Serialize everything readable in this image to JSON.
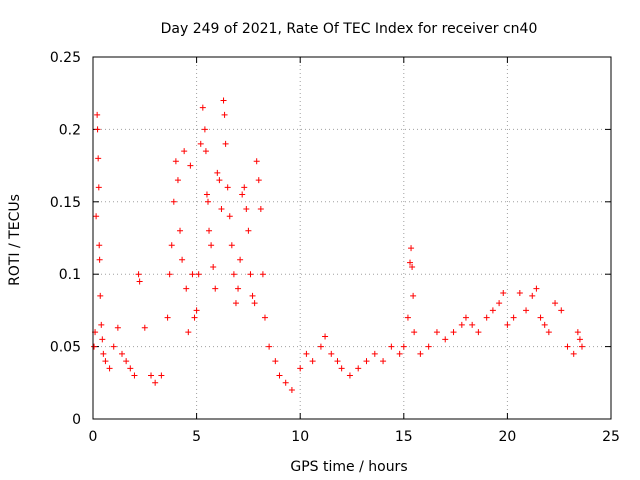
{
  "chart_data": {
    "type": "scatter",
    "title": "Day 249 of 2021, Rate Of TEC Index for receiver cn40",
    "xlabel": "GPS time / hours",
    "ylabel": "ROTI / TECUs",
    "xlim": [
      0,
      25
    ],
    "ylim": [
      0,
      0.25
    ],
    "xticks": [
      "0",
      "5",
      "10",
      "15",
      "20",
      "25"
    ],
    "yticks": [
      "0",
      "0.05",
      "0.1",
      "0.15",
      "0.2",
      "0.25"
    ],
    "xtick_values": [
      0,
      5,
      10,
      15,
      20,
      25
    ],
    "ytick_values": [
      0,
      0.05,
      0.1,
      0.15,
      0.2,
      0.25
    ],
    "grid": true,
    "legend": "none",
    "marker": "plus",
    "color": "#ff0000",
    "series": [
      {
        "points": [
          [
            0.05,
            0.05
          ],
          [
            0.1,
            0.06
          ],
          [
            0.15,
            0.14
          ],
          [
            0.2,
            0.21
          ],
          [
            0.22,
            0.2
          ],
          [
            0.25,
            0.18
          ],
          [
            0.28,
            0.16
          ],
          [
            0.3,
            0.12
          ],
          [
            0.32,
            0.11
          ],
          [
            0.35,
            0.085
          ],
          [
            0.4,
            0.065
          ],
          [
            0.45,
            0.055
          ],
          [
            0.5,
            0.045
          ],
          [
            0.6,
            0.04
          ],
          [
            0.8,
            0.035
          ],
          [
            1.0,
            0.05
          ],
          [
            1.2,
            0.063
          ],
          [
            1.4,
            0.045
          ],
          [
            1.6,
            0.04
          ],
          [
            1.8,
            0.035
          ],
          [
            2.0,
            0.03
          ],
          [
            2.2,
            0.1
          ],
          [
            2.25,
            0.095
          ],
          [
            2.5,
            0.063
          ],
          [
            2.8,
            0.03
          ],
          [
            3.0,
            0.025
          ],
          [
            3.3,
            0.03
          ],
          [
            3.6,
            0.07
          ],
          [
            3.7,
            0.1
          ],
          [
            3.8,
            0.12
          ],
          [
            3.9,
            0.15
          ],
          [
            4.0,
            0.178
          ],
          [
            4.1,
            0.165
          ],
          [
            4.2,
            0.13
          ],
          [
            4.3,
            0.11
          ],
          [
            4.4,
            0.185
          ],
          [
            4.5,
            0.09
          ],
          [
            4.6,
            0.06
          ],
          [
            4.7,
            0.175
          ],
          [
            4.8,
            0.1
          ],
          [
            4.9,
            0.07
          ],
          [
            5.0,
            0.075
          ],
          [
            5.1,
            0.1
          ],
          [
            5.2,
            0.19
          ],
          [
            5.3,
            0.215
          ],
          [
            5.4,
            0.2
          ],
          [
            5.45,
            0.185
          ],
          [
            5.5,
            0.155
          ],
          [
            5.55,
            0.15
          ],
          [
            5.6,
            0.13
          ],
          [
            5.7,
            0.12
          ],
          [
            5.8,
            0.105
          ],
          [
            5.9,
            0.09
          ],
          [
            6.0,
            0.17
          ],
          [
            6.1,
            0.165
          ],
          [
            6.2,
            0.145
          ],
          [
            6.3,
            0.22
          ],
          [
            6.35,
            0.21
          ],
          [
            6.4,
            0.19
          ],
          [
            6.5,
            0.16
          ],
          [
            6.6,
            0.14
          ],
          [
            6.7,
            0.12
          ],
          [
            6.8,
            0.1
          ],
          [
            6.9,
            0.08
          ],
          [
            7.0,
            0.09
          ],
          [
            7.1,
            0.11
          ],
          [
            7.2,
            0.155
          ],
          [
            7.3,
            0.16
          ],
          [
            7.4,
            0.145
          ],
          [
            7.5,
            0.13
          ],
          [
            7.6,
            0.1
          ],
          [
            7.7,
            0.085
          ],
          [
            7.8,
            0.08
          ],
          [
            7.9,
            0.178
          ],
          [
            8.0,
            0.165
          ],
          [
            8.1,
            0.145
          ],
          [
            8.2,
            0.1
          ],
          [
            8.3,
            0.07
          ],
          [
            8.5,
            0.05
          ],
          [
            8.8,
            0.04
          ],
          [
            9.0,
            0.03
          ],
          [
            9.3,
            0.025
          ],
          [
            9.6,
            0.02
          ],
          [
            10.0,
            0.035
          ],
          [
            10.3,
            0.045
          ],
          [
            10.6,
            0.04
          ],
          [
            11.0,
            0.05
          ],
          [
            11.2,
            0.057
          ],
          [
            11.5,
            0.045
          ],
          [
            11.8,
            0.04
          ],
          [
            12.0,
            0.035
          ],
          [
            12.4,
            0.03
          ],
          [
            12.8,
            0.035
          ],
          [
            13.2,
            0.04
          ],
          [
            13.6,
            0.045
          ],
          [
            14.0,
            0.04
          ],
          [
            14.4,
            0.05
          ],
          [
            14.8,
            0.045
          ],
          [
            15.0,
            0.05
          ],
          [
            15.2,
            0.07
          ],
          [
            15.3,
            0.108
          ],
          [
            15.35,
            0.118
          ],
          [
            15.4,
            0.105
          ],
          [
            15.45,
            0.085
          ],
          [
            15.5,
            0.06
          ],
          [
            15.8,
            0.045
          ],
          [
            16.2,
            0.05
          ],
          [
            16.6,
            0.06
          ],
          [
            17.0,
            0.055
          ],
          [
            17.4,
            0.06
          ],
          [
            17.8,
            0.065
          ],
          [
            18.0,
            0.07
          ],
          [
            18.3,
            0.065
          ],
          [
            18.6,
            0.06
          ],
          [
            19.0,
            0.07
          ],
          [
            19.3,
            0.075
          ],
          [
            19.6,
            0.08
          ],
          [
            19.8,
            0.087
          ],
          [
            20.0,
            0.065
          ],
          [
            20.3,
            0.07
          ],
          [
            20.6,
            0.087
          ],
          [
            20.9,
            0.075
          ],
          [
            21.2,
            0.085
          ],
          [
            21.4,
            0.09
          ],
          [
            21.6,
            0.07
          ],
          [
            21.8,
            0.065
          ],
          [
            22.0,
            0.06
          ],
          [
            22.3,
            0.08
          ],
          [
            22.6,
            0.075
          ],
          [
            22.9,
            0.05
          ],
          [
            23.2,
            0.045
          ],
          [
            23.4,
            0.06
          ],
          [
            23.5,
            0.055
          ],
          [
            23.6,
            0.05
          ]
        ]
      }
    ]
  }
}
